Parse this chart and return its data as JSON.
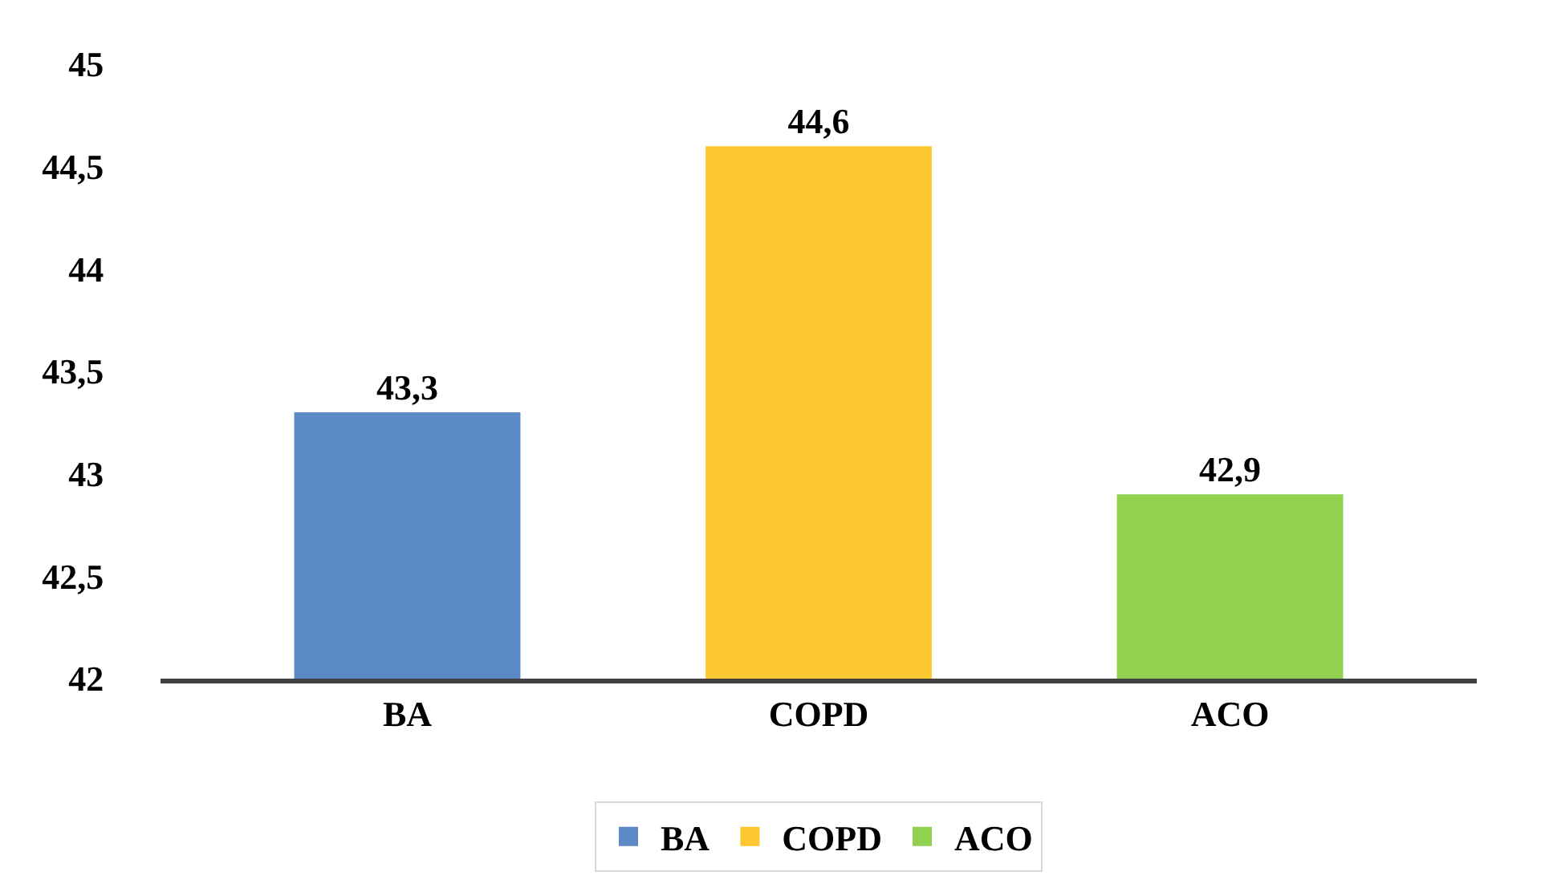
{
  "chart_data": {
    "type": "bar",
    "categories": [
      "BA",
      "COPD",
      "ACO"
    ],
    "series": [
      {
        "name": "BA",
        "color": "#5b8ac6",
        "values": [
          43.3,
          null,
          null
        ],
        "value_labels": [
          "43,3",
          null,
          null
        ]
      },
      {
        "name": "COPD",
        "color": "#fdc82f",
        "values": [
          null,
          44.6,
          null
        ],
        "value_labels": [
          null,
          "44,6",
          null
        ]
      },
      {
        "name": "ACO",
        "color": "#92d050",
        "values": [
          null,
          null,
          42.9
        ],
        "value_labels": [
          null,
          null,
          "42,9"
        ]
      }
    ],
    "ylim": [
      42,
      45
    ],
    "yticks": [
      42,
      {
        "value": 42.5,
        "label": "42,5"
      },
      43,
      {
        "value": 43.5,
        "label": "43,5"
      },
      44,
      {
        "value": 44.5,
        "label": "44,5"
      },
      45
    ],
    "legend": "bottom"
  }
}
